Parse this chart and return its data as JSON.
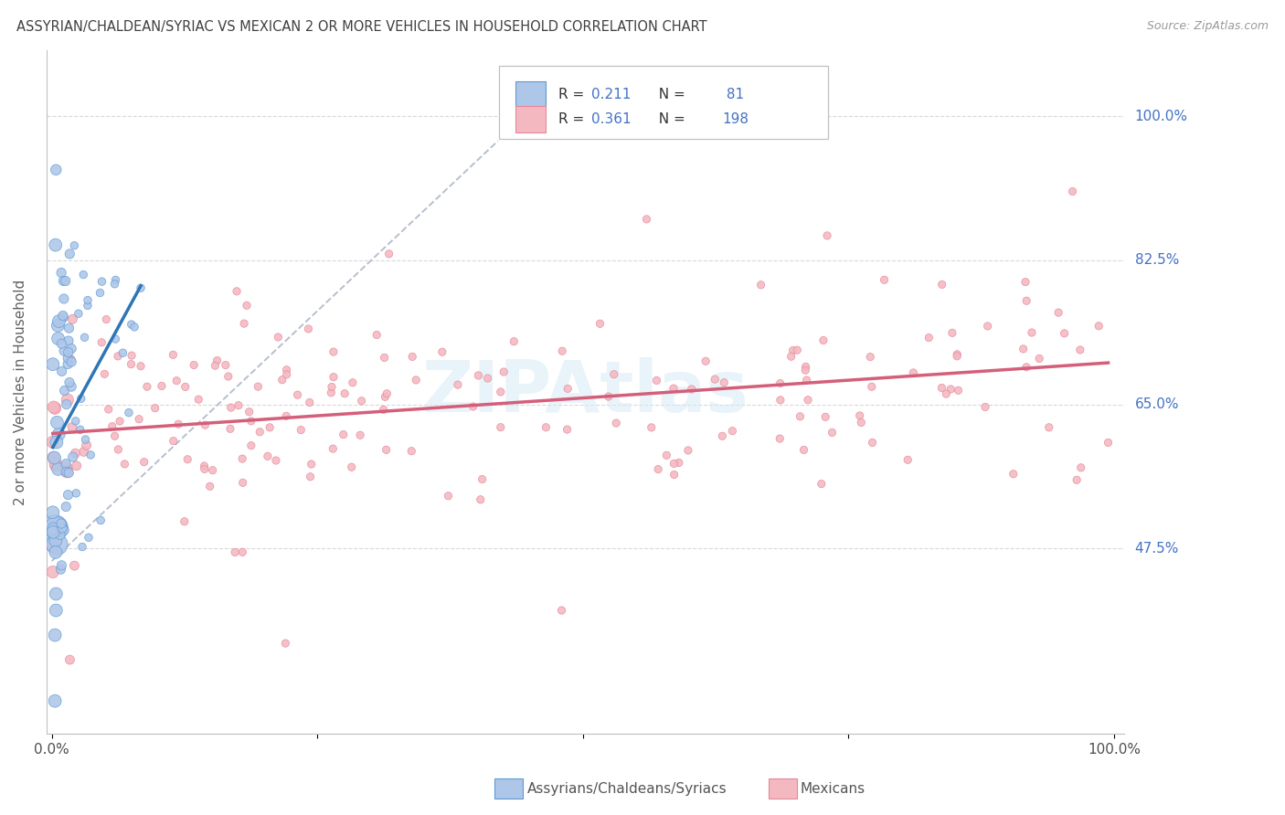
{
  "title": "ASSYRIAN/CHALDEAN/SYRIAC VS MEXICAN 2 OR MORE VEHICLES IN HOUSEHOLD CORRELATION CHART",
  "source": "Source: ZipAtlas.com",
  "ylabel": "2 or more Vehicles in Household",
  "y_ticks": [
    0.475,
    0.65,
    0.825,
    1.0
  ],
  "y_tick_labels": [
    "47.5%",
    "65.0%",
    "82.5%",
    "100.0%"
  ],
  "r_assyrian": 0.211,
  "n_assyrian": 81,
  "r_mexican": 0.361,
  "n_mexican": 198,
  "assyrian_color": "#aec6e8",
  "assyrian_edge": "#5b9bd5",
  "mexican_color": "#f4b8c1",
  "mexican_edge": "#e48899",
  "line_assyrian_color": "#2e75b6",
  "line_mexican_color": "#d45f7a",
  "dashed_line_color": "#b0b8c8",
  "background_color": "#ffffff",
  "grid_color": "#d0d0d0",
  "title_color": "#404040",
  "right_label_color": "#4472c4",
  "legend_label_assyrian": "Assyrians/Chaldeans/Syriacs",
  "legend_label_mexican": "Mexicans",
  "watermark": "ZIPAtlas",
  "xlim": [
    -0.005,
    1.01
  ],
  "ylim": [
    0.25,
    1.08
  ]
}
